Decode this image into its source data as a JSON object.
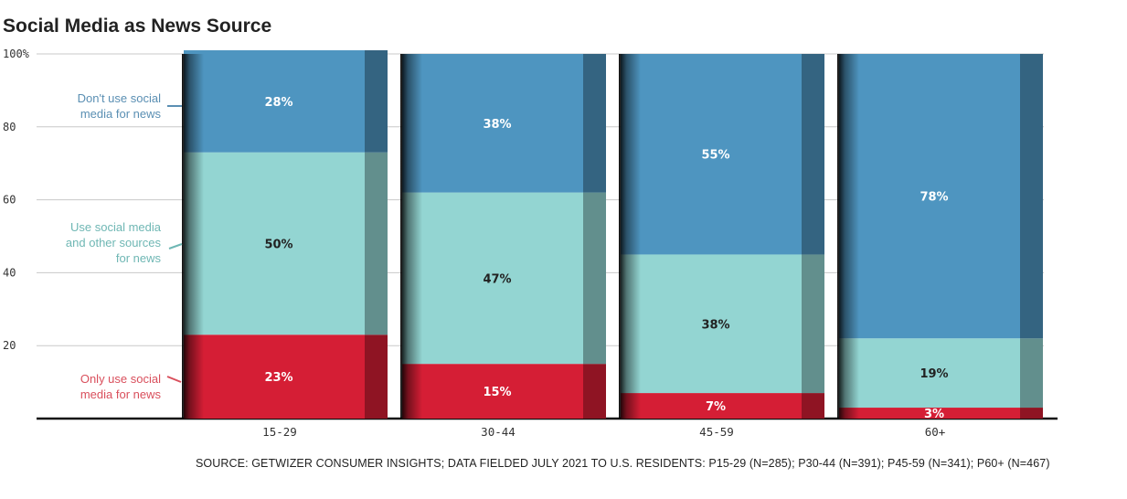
{
  "chart_data": {
    "type": "bar",
    "stacked": true,
    "title": "Social Media as News Source",
    "categories": [
      "15-29",
      "30-44",
      "45-59",
      "60+"
    ],
    "ylim": [
      0,
      100
    ],
    "yticks": [
      20,
      40,
      60,
      80,
      100
    ],
    "ytick_labels": [
      "20",
      "40",
      "60",
      "80",
      "100%"
    ],
    "grid": true,
    "series": [
      {
        "name": "Only use social media for news",
        "legend_lines": [
          "Only use social",
          "media for news"
        ],
        "color": "#d51e35",
        "label_color": "#ffffff",
        "values": [
          23,
          15,
          7,
          3
        ],
        "value_labels": [
          "23%",
          "15%",
          "7%",
          "3%"
        ]
      },
      {
        "name": "Use social media and other sources for news",
        "legend_lines": [
          "Use social media",
          "and other sources",
          "for news"
        ],
        "color": "#93d5d2",
        "label_color": "#222222",
        "values": [
          50,
          47,
          38,
          19
        ],
        "value_labels": [
          "50%",
          "47%",
          "38%",
          "19%"
        ]
      },
      {
        "name": "Don't use social media for news",
        "legend_lines": [
          "Don't use social",
          "media for news"
        ],
        "color": "#4e95c0",
        "label_color": "#ffffff",
        "values": [
          28,
          38,
          55,
          78
        ],
        "value_labels": [
          "28%",
          "38%",
          "55%",
          "78%"
        ]
      }
    ],
    "source": "SOURCE: GETWIZER CONSUMER INSIGHTS; DATA FIELDED JULY 2021 TO U.S. RESIDENTS: P15-29 (N=285); P30-44 (N=391); P45-59 (N=341); P60+ (N=467)"
  }
}
